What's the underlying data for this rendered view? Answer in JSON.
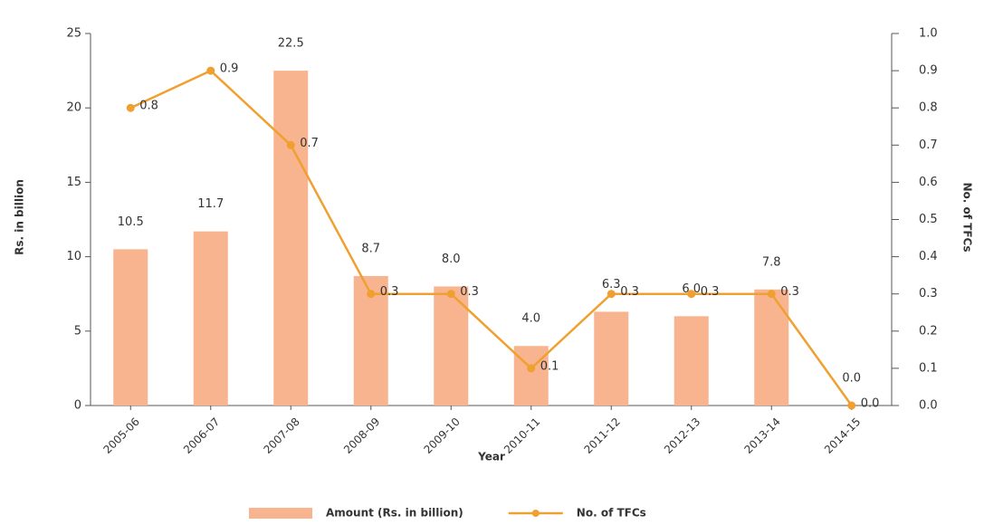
{
  "chart_data": {
    "type": "bar",
    "x_label": "Year",
    "y_label": "Rs. in billion",
    "y2_label": "No. of TFCs",
    "categories": [
      "2005-06",
      "2006-07",
      "2007-08",
      "2008-09",
      "2009-10",
      "2010-11",
      "2011-12",
      "2012-13",
      "2013-14",
      "2014-15"
    ],
    "series": [
      {
        "name": "Amount (Rs. in billion)",
        "type": "bar",
        "color": "#f7b48f",
        "values": [
          10.5,
          11.7,
          22.5,
          8.7,
          8.0,
          4.0,
          6.3,
          6.0,
          7.8,
          0.0
        ],
        "value_labels": [
          "10.5",
          "11.7",
          "22.5",
          "8.7",
          "8.0",
          "4.0",
          "6.3",
          "6.0",
          "7.8",
          "0.0"
        ]
      },
      {
        "name": "No. of TFCs",
        "type": "line",
        "axis": "y2",
        "color": "#f0a030",
        "values": [
          0.8,
          0.9,
          0.7,
          0.3,
          0.3,
          0.1,
          0.3,
          0.3,
          0.3,
          0.0
        ],
        "value_labels": [
          "0.8",
          "0.9",
          "0.7",
          "0.3",
          "0.3",
          "0.1",
          "0.3",
          "0.3",
          "0.3",
          "0.0"
        ]
      }
    ],
    "ylim": [
      0,
      25
    ],
    "yticks": [
      0,
      5,
      10,
      15,
      20,
      25
    ],
    "y2lim": [
      0,
      1.0
    ],
    "y2ticks": [
      {
        "value": 0,
        "label": "0.0"
      },
      0.1,
      0.2,
      0.3,
      0.4,
      0.5,
      0.6,
      0.7,
      0.8,
      0.9,
      {
        "value": 1.0,
        "label": "1.0"
      }
    ],
    "grid": false,
    "legend": "bottom"
  }
}
